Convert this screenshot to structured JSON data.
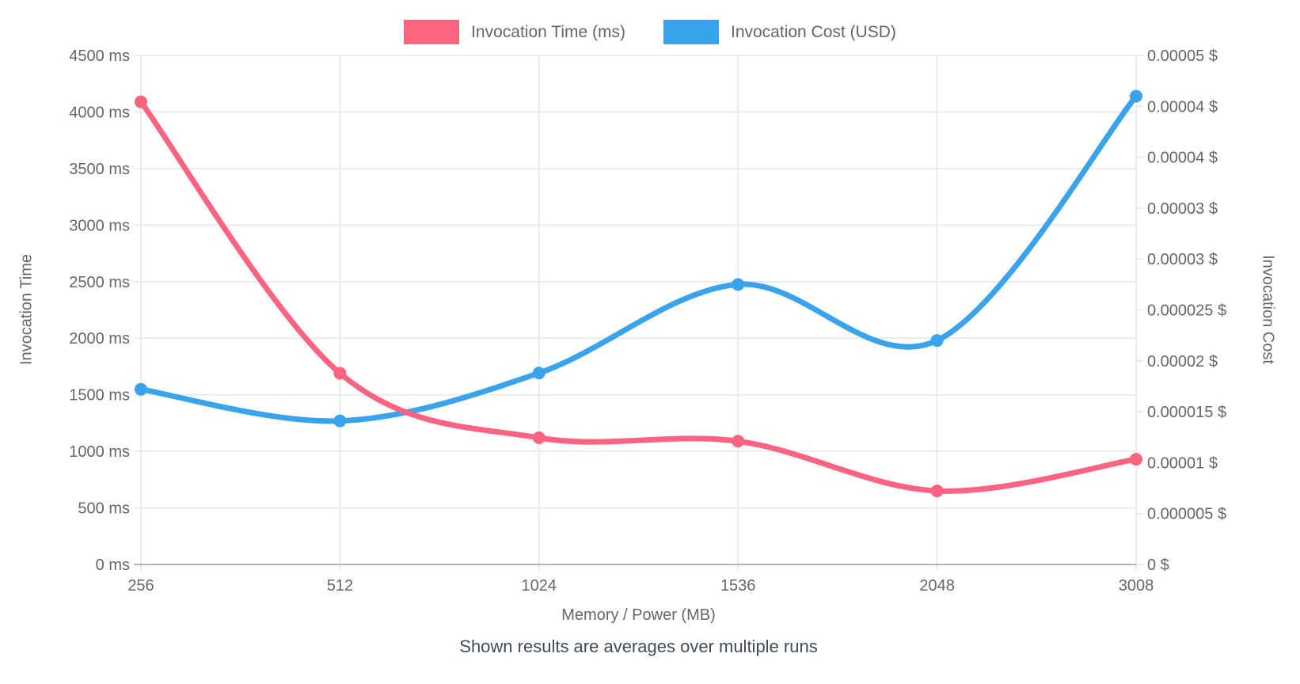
{
  "chart_data": {
    "type": "line",
    "title": "",
    "xlabel": "Memory / Power (MB)",
    "caption": "Shown results are averages over multiple runs",
    "legend_position": "top",
    "categories": [
      "256",
      "512",
      "1024",
      "1536",
      "2048",
      "3008"
    ],
    "series": [
      {
        "name": "Invocation Time (ms)",
        "axis": "left",
        "color": "#fc6380",
        "unit": "ms",
        "values": [
          4090,
          1690,
          1120,
          1090,
          650,
          930
        ]
      },
      {
        "name": "Invocation Cost (USD)",
        "axis": "right",
        "color": "#39a3eb",
        "unit": "USD",
        "values": [
          1.72e-05,
          1.41e-05,
          1.88e-05,
          2.75e-05,
          2.2e-05,
          4.6e-05
        ]
      }
    ],
    "y_left": {
      "label": "Invocation Time",
      "min": 0,
      "max": 4500,
      "step": 500,
      "tick_labels": [
        "4500 ms",
        "4000 ms",
        "3500 ms",
        "3000 ms",
        "2500 ms",
        "2000 ms",
        "1500 ms",
        "1000 ms",
        "500 ms",
        "0 ms"
      ]
    },
    "y_right": {
      "label": "Invocation Cost",
      "min": 0,
      "max": 5e-05,
      "step": 5e-06,
      "tick_labels": [
        "0.00005 $",
        "0.00004 $",
        "0.00004 $",
        "0.00003 $",
        "0.00003 $",
        "0.000025 $",
        "0.00002 $",
        "0.000015 $",
        "0.00001 $",
        "0.000005 $",
        "0 $"
      ]
    },
    "grid": {
      "horizontal": true,
      "vertical": true
    },
    "colors": {
      "grid": "#e8e8e8",
      "axis_line": "#b3b3b3",
      "tick_text": "#666666",
      "axis_title_text": "#666666",
      "caption_text": "#414b5a",
      "background": "#ffffff"
    }
  }
}
